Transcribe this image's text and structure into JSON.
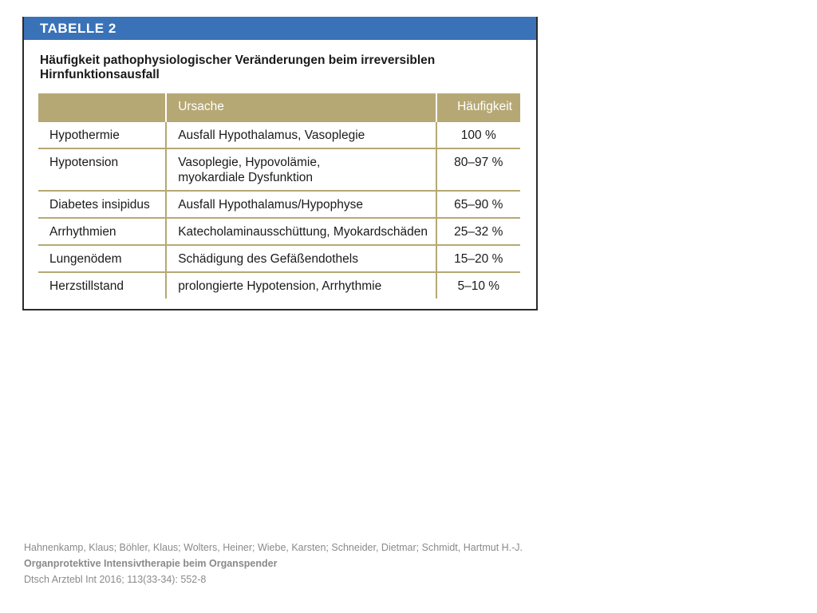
{
  "table": {
    "label": "TABELLE 2",
    "title_line1": "Häufigkeit pathophysiologischer Veränderungen beim irreversiblen",
    "title_line2": "Hirnfunktionsausfall",
    "headers": {
      "condition": "",
      "cause": "Ursache",
      "frequency": "Häufigkeit"
    },
    "rows": [
      {
        "condition": "Hypothermie",
        "cause_line1": "Ausfall Hypothalamus, Vasoplegie",
        "cause_line2": "",
        "frequency": "100 %"
      },
      {
        "condition": "Hypotension",
        "cause_line1": "Vasoplegie, Hypovolämie,",
        "cause_line2": "myokardiale Dysfunktion",
        "frequency": "80–97 %"
      },
      {
        "condition": "Diabetes insipidus",
        "cause_line1": "Ausfall Hypothalamus/Hypophyse",
        "cause_line2": "",
        "frequency": "65–90 %"
      },
      {
        "condition": "Arrhythmien",
        "cause_line1": "Katecholaminausschüttung, Myokardschäden",
        "cause_line2": "",
        "frequency": "25–32 %"
      },
      {
        "condition": "Lungenödem",
        "cause_line1": "Schädigung des Gefäßendothels",
        "cause_line2": "",
        "frequency": "15–20 %"
      },
      {
        "condition": "Herzstillstand",
        "cause_line1": "prolongierte Hypotension, Arrhythmie",
        "cause_line2": "",
        "frequency": "5–10 %"
      }
    ]
  },
  "citation": {
    "authors": "Hahnenkamp, Klaus; Böhler, Klaus; Wolters, Heiner; Wiebe, Karsten; Schneider, Dietmar; Schmidt, Hartmut H.-J.",
    "title": "Organprotektive Intensivtherapie beim Organspender",
    "source": "Dtsch Arztebl Int 2016; 113(33-34): 552-8"
  },
  "colors": {
    "banner": "#3a72b8",
    "header_fill": "#b6a874",
    "citation_text": "#8a8a8a"
  }
}
